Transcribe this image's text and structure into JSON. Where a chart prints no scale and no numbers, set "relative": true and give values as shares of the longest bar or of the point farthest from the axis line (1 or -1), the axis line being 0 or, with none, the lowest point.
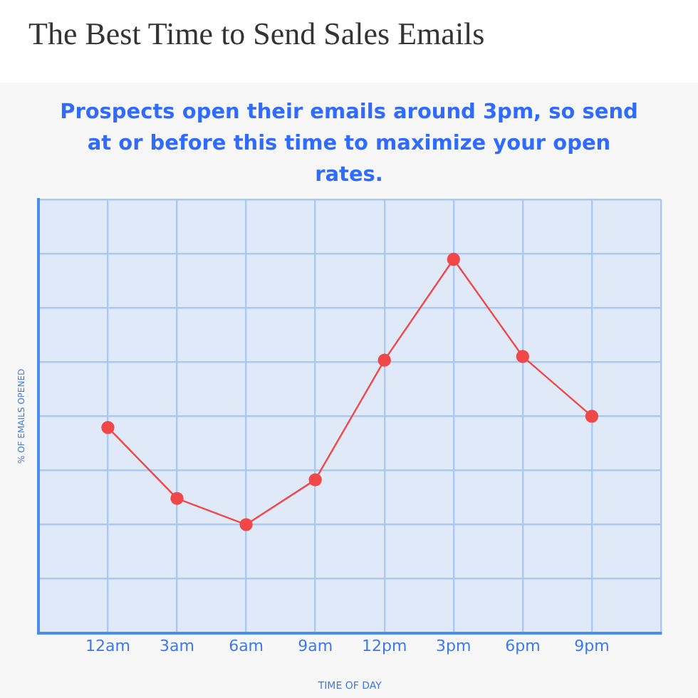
{
  "chart_data": {
    "type": "line",
    "title": "The Best Time to Send Sales Emails",
    "subtitle": "Prospects open their emails around 3pm, so send at or before this time to maximize your open rates.",
    "xlabel": "TIME OF DAY",
    "ylabel": "% OF EMAILS OPENED",
    "categories": [
      "12am",
      "3am",
      "6am",
      "9am",
      "12pm",
      "3pm",
      "6pm",
      "9pm"
    ],
    "relative": true,
    "series": [
      {
        "color": "#f04848",
        "values": [
          0.55,
          0.36,
          0.29,
          0.41,
          0.73,
          1,
          0.74,
          0.58
        ]
      }
    ],
    "marker": "circle",
    "line_style": "solid",
    "grid": true,
    "legend": false
  }
}
